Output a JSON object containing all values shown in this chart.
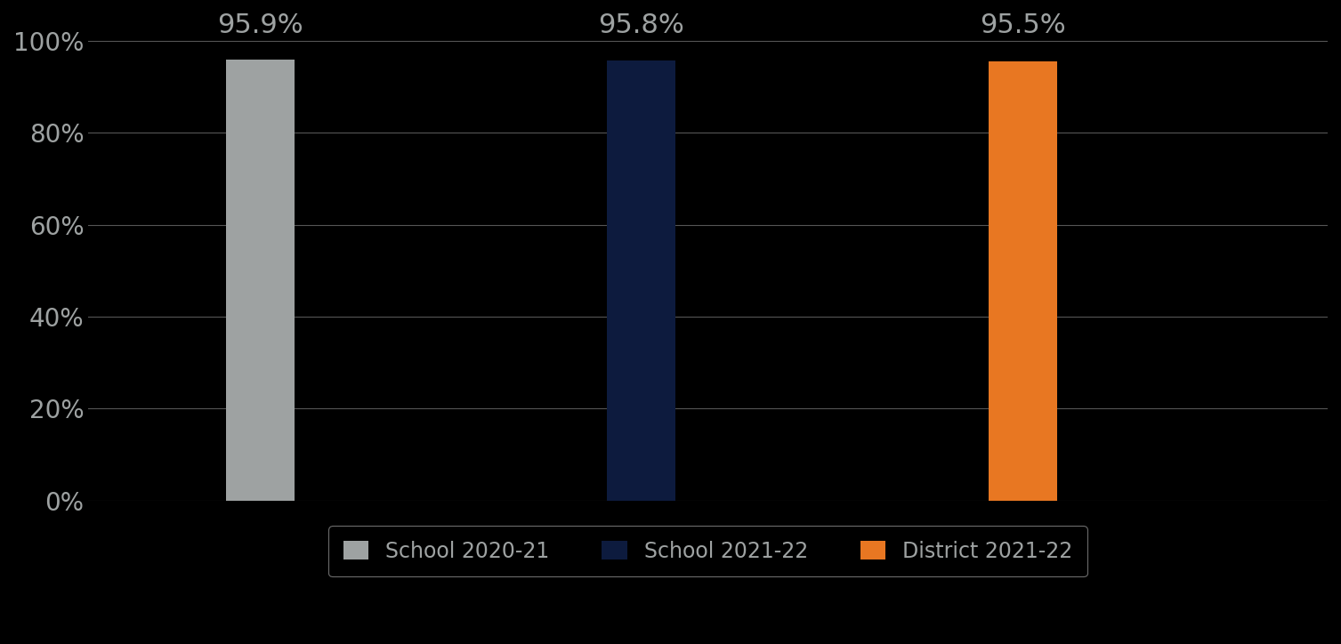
{
  "categories": [
    "School 2020-21",
    "School 2021-22",
    "District 2021-22"
  ],
  "values": [
    0.959,
    0.958,
    0.955
  ],
  "bar_colors": [
    "#9EA2A2",
    "#0D1B3E",
    "#E87722"
  ],
  "bar_labels": [
    "95.9%",
    "95.8%",
    "95.5%"
  ],
  "background_color": "#000000",
  "text_color": "#9EA2A2",
  "grid_color": "#555555",
  "ylim": [
    0,
    1.05
  ],
  "yticks": [
    0.0,
    0.2,
    0.4,
    0.6,
    0.8,
    1.0
  ],
  "ytick_labels": [
    "0%",
    "20%",
    "40%",
    "60%",
    "80%",
    "100%"
  ],
  "tick_fontsize": 20,
  "bar_label_fontsize": 22,
  "legend_fontsize": 17,
  "bar_width": 0.18
}
